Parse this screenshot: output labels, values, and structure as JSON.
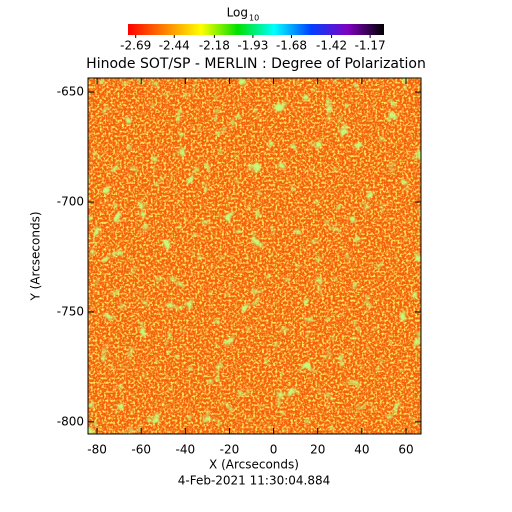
{
  "chart_data": {
    "type": "heatmap",
    "title": "Hinode SOT/SP - MERLIN : Degree of Polarization",
    "x_label": "X (Arcseconds)",
    "y_label": "Y (Arcseconds)",
    "footer": "4-Feb-2021 11:30:04.884",
    "xlim": [
      -84.1,
      66.8
    ],
    "xticks": [
      -80,
      -60,
      -40,
      -20,
      0,
      20,
      40,
      60
    ],
    "ylim": [
      -805.5,
      -643.6
    ],
    "yticks": [
      -650,
      -700,
      -750,
      -800
    ],
    "colorbar": {
      "label": "Log",
      "label_subscript": "10",
      "clim": [
        -2.74,
        -1.08
      ],
      "ticks": [
        -2.69,
        -2.44,
        -2.18,
        -1.93,
        -1.68,
        -1.42,
        -1.17
      ],
      "colors": [
        "#ff0000",
        "#ff8000",
        "#ffff00",
        "#00e000",
        "#00ffff",
        "#0040ff",
        "#8000c0",
        "#000000"
      ]
    }
  }
}
